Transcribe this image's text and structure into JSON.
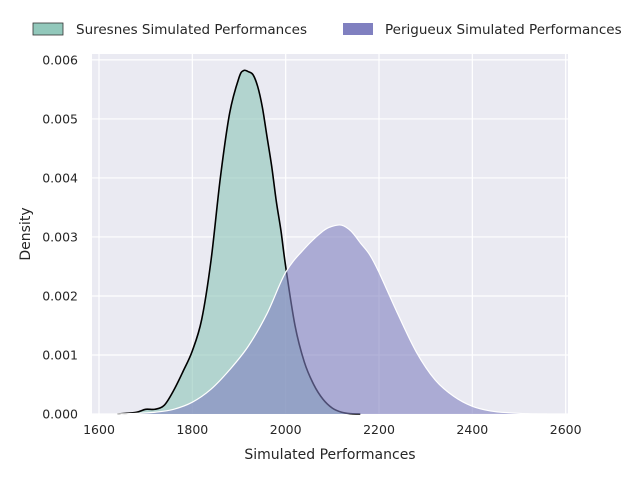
{
  "chart_data": {
    "type": "area",
    "xlabel": "Simulated Performances",
    "ylabel": "Density",
    "xlim": [
      1585,
      2605
    ],
    "ylim": [
      0,
      0.0061
    ],
    "xticks": [
      1600,
      1800,
      2000,
      2200,
      2400,
      2600
    ],
    "yticks": [
      0.0,
      0.001,
      0.002,
      0.003,
      0.004,
      0.005,
      0.006
    ],
    "ytick_labels": [
      "0.000",
      "0.001",
      "0.002",
      "0.003",
      "0.004",
      "0.005",
      "0.006"
    ],
    "grid": true,
    "legend_position": "top",
    "series": [
      {
        "name": "Suresnes Simulated Performances",
        "fill": "#8cc5b7",
        "stroke": "#000000",
        "x": [
          1640,
          1680,
          1700,
          1720,
          1740,
          1760,
          1780,
          1800,
          1820,
          1840,
          1860,
          1880,
          1900,
          1910,
          1920,
          1930,
          1940,
          1950,
          1960,
          1970,
          1980,
          1990,
          2000,
          2020,
          2040,
          2060,
          2080,
          2100,
          2120,
          2140,
          2160
        ],
        "y": [
          0.0,
          3e-05,
          8e-05,
          8e-05,
          0.00015,
          0.0004,
          0.00072,
          0.00107,
          0.0016,
          0.0026,
          0.004,
          0.0051,
          0.0057,
          0.00582,
          0.0058,
          0.00575,
          0.00555,
          0.0052,
          0.0047,
          0.0042,
          0.0036,
          0.0031,
          0.0025,
          0.0015,
          0.00088,
          0.0005,
          0.00025,
          0.0001,
          3e-05,
          5e-06,
          0.0
        ]
      },
      {
        "name": "Perigueux Simulated Performances",
        "fill": "#8080c0",
        "stroke": "#ffffff",
        "x": [
          1640,
          1680,
          1720,
          1760,
          1800,
          1840,
          1880,
          1920,
          1960,
          2000,
          2040,
          2080,
          2100,
          2120,
          2140,
          2160,
          2180,
          2200,
          2240,
          2280,
          2320,
          2360,
          2400,
          2440,
          2480,
          2520,
          2560
        ],
        "y": [
          0.0,
          1e-05,
          3e-05,
          8e-05,
          0.0002,
          0.00042,
          0.00075,
          0.00115,
          0.0017,
          0.0024,
          0.0028,
          0.0031,
          0.00318,
          0.0032,
          0.0031,
          0.0029,
          0.0027,
          0.0024,
          0.0017,
          0.00105,
          0.00058,
          0.0003,
          0.00013,
          5e-05,
          2e-05,
          5e-06,
          0.0
        ]
      }
    ]
  }
}
